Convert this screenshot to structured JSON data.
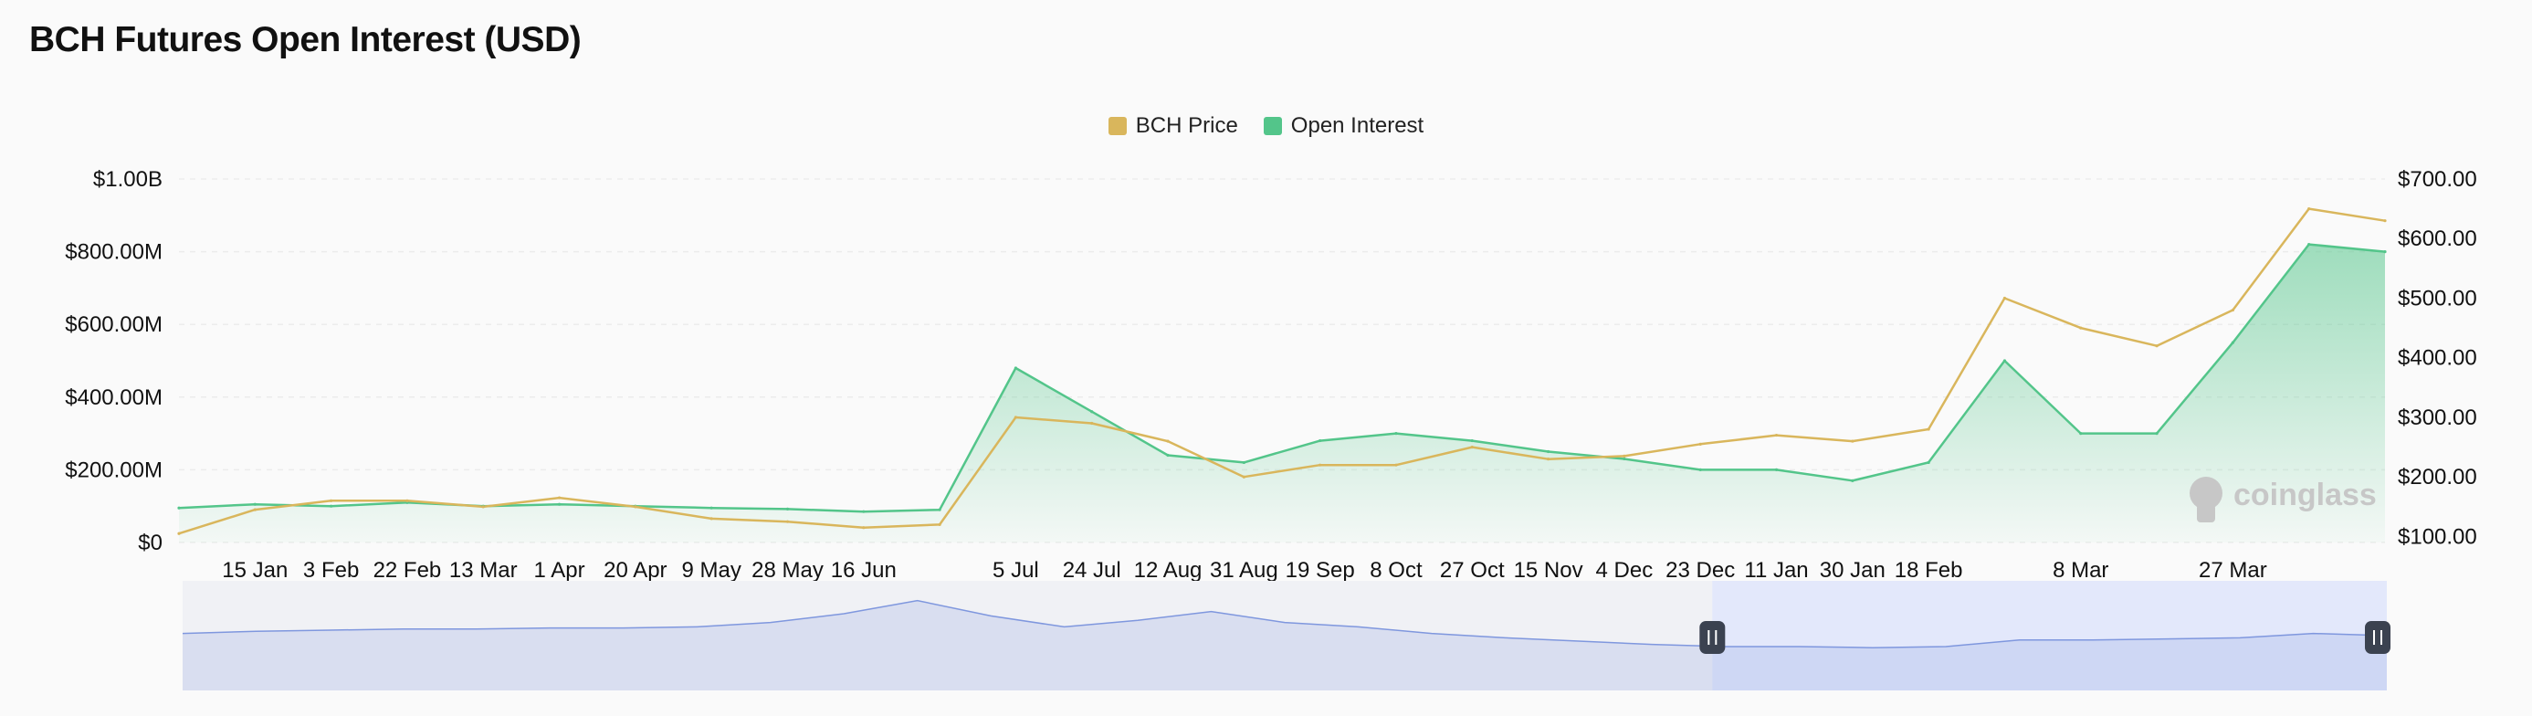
{
  "title": "BCH Futures Open Interest (USD)",
  "colors": {
    "price": "#d9b65c",
    "open_interest": "#53c58a",
    "navigator_line": "#7f97de",
    "navigator_selection": "#e3e8fb",
    "grid": "#ececec"
  },
  "watermark": "coinglass",
  "chart_data": {
    "type": "area",
    "legend_position": "top-center",
    "grid": true,
    "x_tick_labels": [
      "15 Jan",
      "3 Feb",
      "22 Feb",
      "13 Mar",
      "1 Apr",
      "20 Apr",
      "9 May",
      "28 May",
      "16 Jun",
      "5 Jul",
      "24 Jul",
      "12 Aug",
      "31 Aug",
      "19 Sep",
      "8 Oct",
      "27 Oct",
      "15 Nov",
      "4 Dec",
      "23 Dec",
      "11 Jan",
      "30 Jan",
      "18 Feb",
      "8 Mar",
      "27 Mar"
    ],
    "x": [
      "2 Jan",
      "15 Jan",
      "3 Feb",
      "22 Feb",
      "13 Mar",
      "1 Apr",
      "20 Apr",
      "9 May",
      "28 May",
      "16 Jun",
      "22 Jun",
      "5 Jul",
      "24 Jul",
      "12 Aug",
      "31 Aug",
      "19 Sep",
      "8 Oct",
      "27 Oct",
      "15 Nov",
      "4 Dec",
      "23 Dec",
      "11 Jan",
      "30 Jan",
      "18 Feb",
      "1 Mar",
      "8 Mar",
      "18 Mar",
      "27 Mar",
      "30 Mar",
      "2 Apr"
    ],
    "y_left": {
      "label": "",
      "ticks": [
        "$0",
        "$200.00M",
        "$400.00M",
        "$600.00M",
        "$800.00M",
        "$1.00B"
      ],
      "range": [
        0,
        1000
      ]
    },
    "y_right": {
      "label": "",
      "ticks": [
        "$100.00",
        "$200.00",
        "$300.00",
        "$400.00",
        "$500.00",
        "$600.00",
        "$700.00"
      ],
      "range": [
        90,
        700
      ]
    },
    "series": [
      {
        "name": "Open Interest",
        "axis": "left",
        "unit": "USD millions",
        "values": [
          95,
          105,
          100,
          110,
          100,
          105,
          100,
          95,
          92,
          85,
          90,
          480,
          360,
          240,
          220,
          280,
          300,
          280,
          250,
          230,
          200,
          200,
          170,
          220,
          500,
          300,
          300,
          550,
          820,
          800
        ]
      },
      {
        "name": "BCH Price",
        "axis": "right",
        "unit": "USD",
        "values": [
          105,
          145,
          160,
          160,
          150,
          165,
          150,
          130,
          125,
          115,
          120,
          300,
          290,
          260,
          200,
          220,
          220,
          250,
          230,
          235,
          255,
          270,
          260,
          280,
          500,
          450,
          420,
          480,
          650,
          630
        ]
      }
    ]
  },
  "navigator": {
    "values": [
      0.52,
      0.54,
      0.55,
      0.56,
      0.56,
      0.57,
      0.57,
      0.58,
      0.62,
      0.7,
      0.82,
      0.68,
      0.58,
      0.64,
      0.72,
      0.62,
      0.58,
      0.52,
      0.48,
      0.45,
      0.42,
      0.4,
      0.4,
      0.39,
      0.4,
      0.46,
      0.46,
      0.47,
      0.48,
      0.52,
      0.5
    ],
    "selection_start": 0.694,
    "selection_end": 1.0
  }
}
